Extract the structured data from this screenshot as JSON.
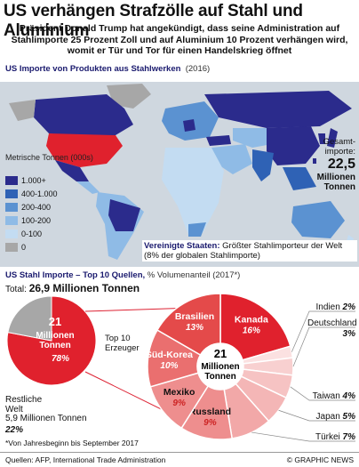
{
  "title": "US verhängen Strafzölle auf Stahl und Aluminium",
  "intro": "Präsident Donald Trump hat angekündigt, dass seine Administration auf Stahlimporte 25 Prozent Zoll und auf Aluminium 10 Prozent verhängen wird, womit er Tür und Tor für einen Handelskrieg öffnet",
  "map_section": {
    "heading": "US Importe von Produkten aus Stahlwerken",
    "year": "(2016)",
    "legend_title": "Metrische Tonnen (000s)",
    "legend": [
      {
        "label": "1.000+",
        "color": "#2b2b8c"
      },
      {
        "label": "400-1.000",
        "color": "#2f62b5"
      },
      {
        "label": "200-400",
        "color": "#5b92d1"
      },
      {
        "label": "100-200",
        "color": "#8fbbe6"
      },
      {
        "label": "0-100",
        "color": "#c3dcf2"
      },
      {
        "label": "0",
        "color": "#a7a7a7"
      }
    ],
    "total_label": "Gesamt-importe:",
    "total_value": "22,5",
    "total_unit": "Millionen Tonnen",
    "us_note_bold": "Vereinigte Staaten:",
    "us_note": "Größter Stahlimporteur der Welt (8% der globalen Stahlimporte)"
  },
  "sources_section": {
    "heading": "US Stahl Importe – Top 10 Quellen,",
    "heading_sub": "% Volumenanteil (2017*)",
    "total_label": "Total:",
    "total_value": "26,9 Millionen Tonnen",
    "top10_label": "Top 10 Erzeuger",
    "rest_label": "Restliche Welt",
    "rest_value": "5,9 Millionen Tonnen",
    "rest_pct": "22%",
    "top10_value": "21",
    "top10_unit": "Millionen Tonnen",
    "top10_pct": "78%",
    "center_value": "21",
    "center_unit": "Millionen Tonnen"
  },
  "chart_data": [
    {
      "type": "pie",
      "title": "",
      "categories": [
        "Top 10 Erzeuger",
        "Restliche Welt"
      ],
      "values": [
        78,
        22
      ],
      "colors": [
        "#e0212d",
        "#a7a7a7"
      ]
    },
    {
      "type": "pie",
      "title": "US Stahl Importe – Top 10 Quellen, % Volumenanteil (2017*)",
      "categories": [
        "Kanada",
        "Indien",
        "Deutschland",
        "Taiwan",
        "Japan",
        "Türkei",
        "Russland",
        "Mexiko",
        "Süd-Korea",
        "Brasilien"
      ],
      "values": [
        16,
        2,
        3,
        4,
        5,
        7,
        9,
        9,
        10,
        13
      ],
      "labels": [
        "16%",
        "2%",
        "3%",
        "4%",
        "5%",
        "7%",
        "9%",
        "9%",
        "10%",
        "13%"
      ],
      "colors": [
        "#e0212d",
        "#fbe1e1",
        "#f8d0d0",
        "#f6c3c3",
        "#f4b6b6",
        "#f2a8a8",
        "#ee8e8e",
        "#ee8e8e",
        "#ea6f6f",
        "#e44a4a"
      ]
    }
  ],
  "footnote": "*Von Jahresbeginn bis September 2017",
  "source": "Quellen: AFP, International Trade Administration",
  "credit": "© GRAPHIC NEWS"
}
